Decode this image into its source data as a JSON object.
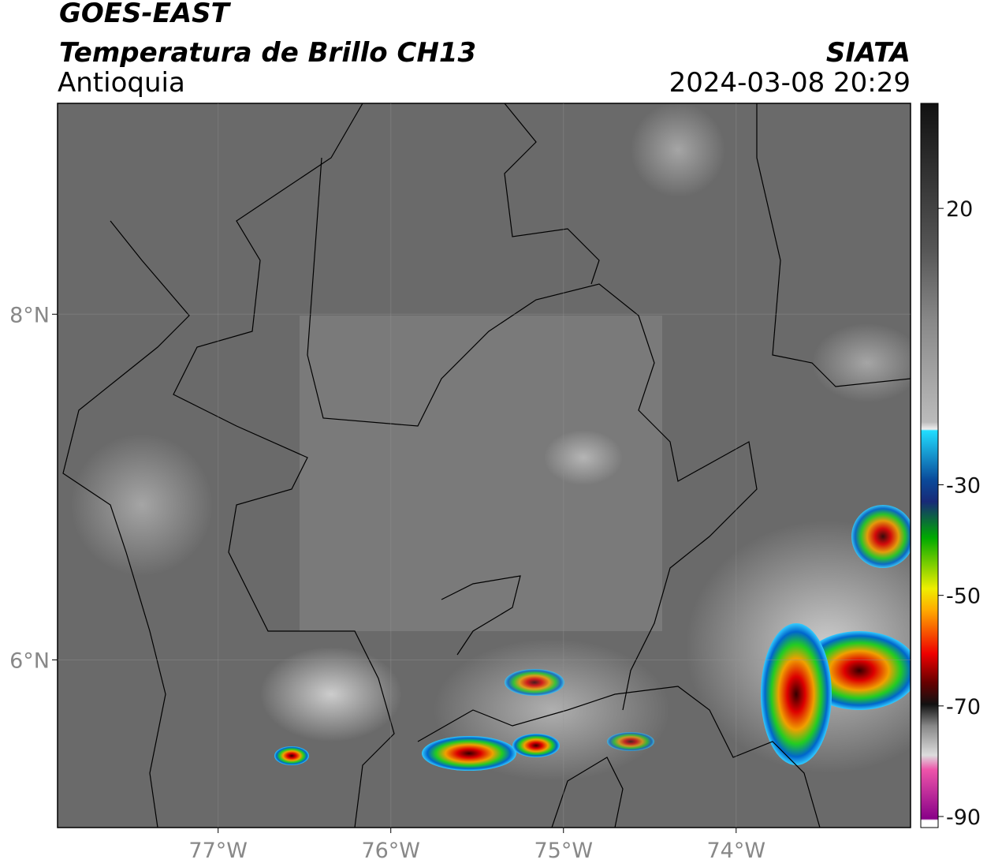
{
  "header": {
    "title": "GOES-EAST",
    "subtitle": "Temperatura de Brillo CH13",
    "region": "Antioquia",
    "source": "SIATA",
    "datetime": "2024-03-08 20:29"
  },
  "map": {
    "xlim": [
      -77.93,
      -72.99
    ],
    "ylim": [
      5.03,
      9.22
    ],
    "xticks": [
      {
        "value": -77,
        "label": "77°W"
      },
      {
        "value": -76,
        "label": "76°W"
      },
      {
        "value": -75,
        "label": "75°W"
      },
      {
        "value": -74,
        "label": "74°W"
      }
    ],
    "yticks": [
      {
        "value": 8,
        "label": "8°N"
      },
      {
        "value": 6,
        "label": "6°N"
      }
    ]
  },
  "colorbar": {
    "lim": [
      -92,
      39
    ],
    "ticks": [
      20,
      -30,
      -50,
      -70,
      -90
    ]
  }
}
